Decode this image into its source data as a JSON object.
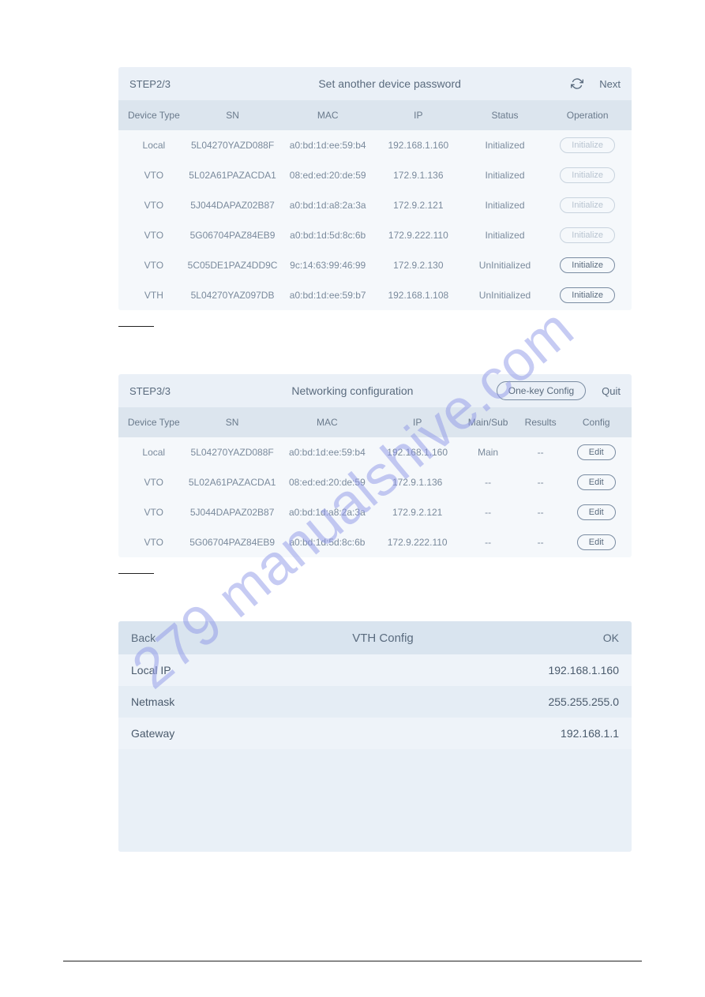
{
  "watermark": "279 manualshive.com",
  "panel1": {
    "step": "STEP2/3",
    "title": "Set another device password",
    "next": "Next",
    "columns": {
      "type": "Device Type",
      "sn": "SN",
      "mac": "MAC",
      "ip": "IP",
      "status": "Status",
      "operation": "Operation"
    },
    "rows": [
      {
        "type": "Local",
        "sn": "5L04270YAZD088F",
        "mac": "a0:bd:1d:ee:59:b4",
        "ip": "192.168.1.160",
        "status": "Initialized",
        "btn": "Initialize",
        "btn_enabled": false
      },
      {
        "type": "VTO",
        "sn": "5L02A61PAZACDA1",
        "mac": "08:ed:ed:20:de:59",
        "ip": "172.9.1.136",
        "status": "Initialized",
        "btn": "Initialize",
        "btn_enabled": false
      },
      {
        "type": "VTO",
        "sn": "5J044DAPAZ02B87",
        "mac": "a0:bd:1d:a8:2a:3a",
        "ip": "172.9.2.121",
        "status": "Initialized",
        "btn": "Initialize",
        "btn_enabled": false
      },
      {
        "type": "VTO",
        "sn": "5G06704PAZ84EB9",
        "mac": "a0:bd:1d:5d:8c:6b",
        "ip": "172.9.222.110",
        "status": "Initialized",
        "btn": "Initialize",
        "btn_enabled": false
      },
      {
        "type": "VTO",
        "sn": "5C05DE1PAZ4DD9C",
        "mac": "9c:14:63:99:46:99",
        "ip": "172.9.2.130",
        "status": "UnInitialized",
        "btn": "Initialize",
        "btn_enabled": true
      },
      {
        "type": "VTH",
        "sn": "5L04270YAZ097DB",
        "mac": "a0:bd:1d:ee:59:b7",
        "ip": "192.168.1.108",
        "status": "UnInitialized",
        "btn": "Initialize",
        "btn_enabled": true
      }
    ]
  },
  "panel2": {
    "step": "STEP3/3",
    "title": "Networking configuration",
    "onekey": "One-key Config",
    "quit": "Quit",
    "columns": {
      "type": "Device Type",
      "sn": "SN",
      "mac": "MAC",
      "ip": "IP",
      "main": "Main/Sub",
      "results": "Results",
      "config": "Config"
    },
    "rows": [
      {
        "type": "Local",
        "sn": "5L04270YAZD088F",
        "mac": "a0:bd:1d:ee:59:b4",
        "ip": "192.168.1.160",
        "main": "Main",
        "results": "--",
        "btn": "Edit"
      },
      {
        "type": "VTO",
        "sn": "5L02A61PAZACDA1",
        "mac": "08:ed:ed:20:de:59",
        "ip": "172.9.1.136",
        "main": "--",
        "results": "--",
        "btn": "Edit"
      },
      {
        "type": "VTO",
        "sn": "5J044DAPAZ02B87",
        "mac": "a0:bd:1d:a8:2a:3a",
        "ip": "172.9.2.121",
        "main": "--",
        "results": "--",
        "btn": "Edit"
      },
      {
        "type": "VTO",
        "sn": "5G06704PAZ84EB9",
        "mac": "a0:bd:1d:5d:8c:6b",
        "ip": "172.9.222.110",
        "main": "--",
        "results": "--",
        "btn": "Edit"
      }
    ]
  },
  "panel3": {
    "back": "Back",
    "title": "VTH Config",
    "ok": "OK",
    "rows": [
      {
        "label": "Local IP",
        "value": "192.168.1.160"
      },
      {
        "label": "Netmask",
        "value": "255.255.255.0"
      },
      {
        "label": "Gateway",
        "value": "192.168.1.1"
      }
    ]
  }
}
